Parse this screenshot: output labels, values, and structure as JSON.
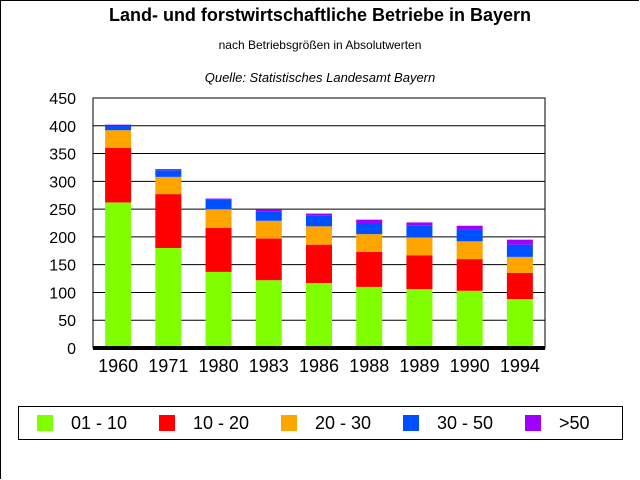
{
  "title": "Land- und forstwirtschaftliche Betriebe in Bayern",
  "subtitle": "nach Betriebsgrößen in Absolutwerten",
  "source": "Quelle: Statistisches Landesamt Bayern",
  "chart_data": {
    "type": "bar",
    "stacked": true,
    "categories": [
      "1960",
      "1971",
      "1980",
      "1983",
      "1986",
      "1988",
      "1989",
      "1990",
      "1994"
    ],
    "ylim": [
      0,
      450
    ],
    "yticks": [
      0,
      50,
      100,
      150,
      200,
      250,
      300,
      350,
      400,
      450
    ],
    "grid": true,
    "legend_position": "bottom",
    "series": [
      {
        "name": "01 - 10",
        "color": "#80ff00",
        "values": [
          262,
          180,
          137,
          122,
          117,
          110,
          106,
          103,
          88
        ]
      },
      {
        "name": "10 - 20",
        "color": "#ff0000",
        "values": [
          98,
          97,
          79,
          75,
          69,
          63,
          61,
          57,
          47
        ]
      },
      {
        "name": "20 - 30",
        "color": "#ffa500",
        "values": [
          32,
          31,
          34,
          32,
          33,
          32,
          32,
          32,
          29
        ]
      },
      {
        "name": "30 - 50",
        "color": "#0050ff",
        "values": [
          8,
          12,
          17,
          17,
          19,
          20,
          22,
          22,
          22
        ]
      },
      {
        "name": ">50",
        "color": "#a000ff",
        "values": [
          2,
          2,
          2,
          4,
          4,
          6,
          5,
          6,
          9
        ]
      }
    ]
  }
}
